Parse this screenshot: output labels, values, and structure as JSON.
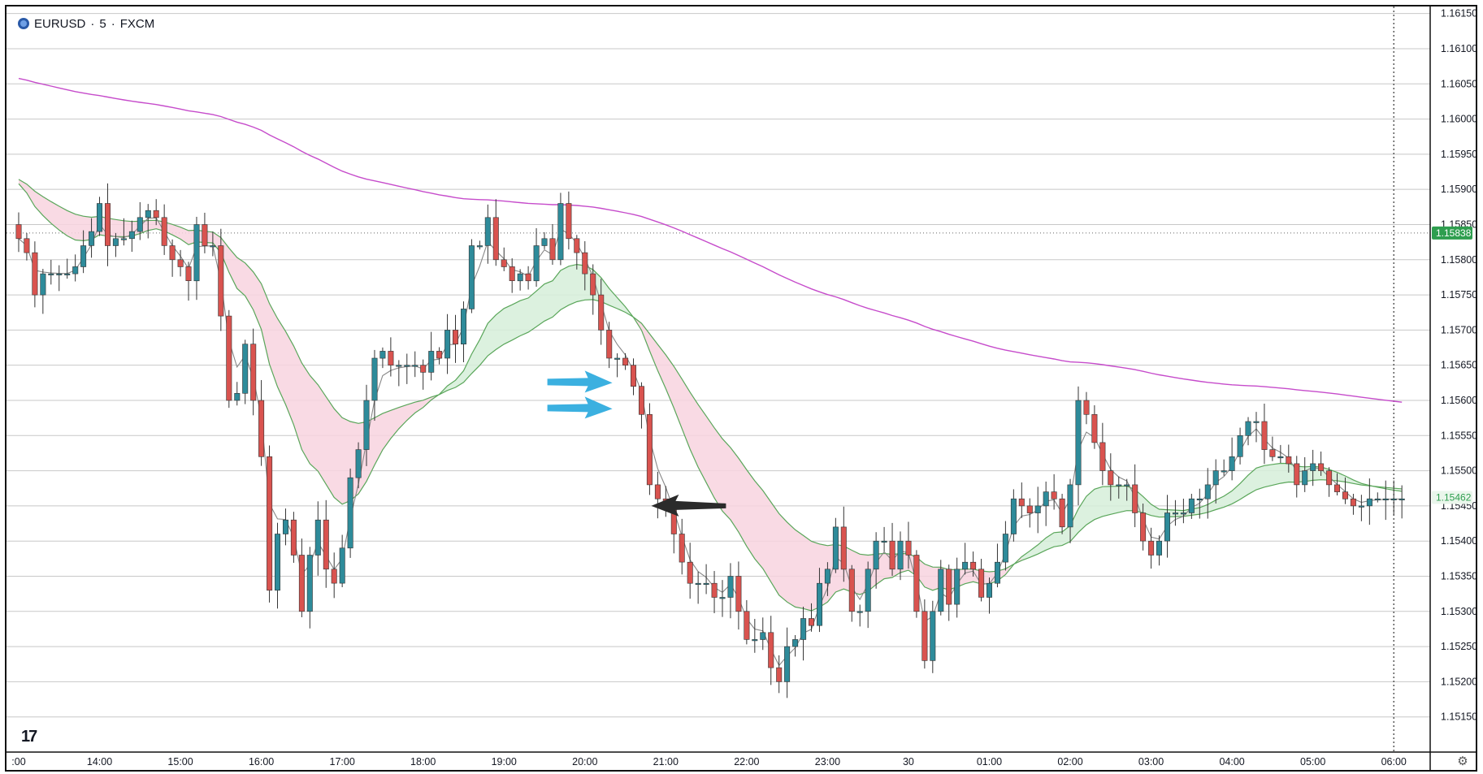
{
  "header": {
    "symbol": "EURUSD",
    "sep1": "·",
    "interval": "5",
    "sep2": "·",
    "exchange": "FXCM",
    "logo_icon": "fxcm-logo-icon"
  },
  "footer": {
    "brand_icon": "tradingview-logo-icon",
    "brand_text": "17",
    "settings_icon": "gear-icon"
  },
  "colors": {
    "bull": "#26a69a",
    "bear": "#ef5350",
    "bull_body": "#2e8b9a",
    "bear_body": "#d9534f",
    "ma_slow": "#c64ccb",
    "ribbon_line": "#5aa65a",
    "bear_fill": "#f8d3df",
    "bull_fill": "#d6efd9",
    "grid": "#c8c8c8",
    "ema_fast": "#888888",
    "arrow_blue": "#3bb0e0",
    "arrow_dark": "#2b2b2b",
    "badge_green": "#2e9e4f"
  },
  "chart_data": {
    "type": "candlestick",
    "symbol": "EURUSD",
    "interval": "5",
    "ylim": [
      1.151,
      1.1616
    ],
    "y_ticks": [
      "1.16150",
      "1.16100",
      "1.16050",
      "1.16000",
      "1.15950",
      "1.15900",
      "1.15850",
      "1.15800",
      "1.15750",
      "1.15700",
      "1.15650",
      "1.15600",
      "1.15550",
      "1.15500",
      "1.15450",
      "1.15400",
      "1.15350",
      "1.15300",
      "1.15250",
      "1.15200",
      "1.15150"
    ],
    "y_tick_values": [
      1.1615,
      1.161,
      1.1605,
      1.16,
      1.1595,
      1.159,
      1.1585,
      1.158,
      1.1575,
      1.157,
      1.1565,
      1.156,
      1.1555,
      1.155,
      1.1545,
      1.154,
      1.1535,
      1.153,
      1.1525,
      1.152,
      1.1515
    ],
    "x_ticks": [
      {
        "label": ":00",
        "bar": 0
      },
      {
        "label": "14:00",
        "bar": 10
      },
      {
        "label": "15:00",
        "bar": 20
      },
      {
        "label": "16:00",
        "bar": 30
      },
      {
        "label": "17:00",
        "bar": 40
      },
      {
        "label": "18:00",
        "bar": 50
      },
      {
        "label": "19:00",
        "bar": 60
      },
      {
        "label": "20:00",
        "bar": 70
      },
      {
        "label": "21:00",
        "bar": 80
      },
      {
        "label": "22:00",
        "bar": 90
      },
      {
        "label": "23:00",
        "bar": 100
      },
      {
        "label": "30",
        "bar": 110
      },
      {
        "label": "01:00",
        "bar": 120
      },
      {
        "label": "02:00",
        "bar": 130
      },
      {
        "label": "03:00",
        "bar": 140
      },
      {
        "label": "04:00",
        "bar": 150
      },
      {
        "label": "05:00",
        "bar": 160
      },
      {
        "label": "06:00",
        "bar": 170
      }
    ],
    "bar_count": 175,
    "crosshair_bar": 170,
    "last_price_label": "1.15462",
    "last_price": 1.15462,
    "marker_price_label": "1.15838",
    "marker_price": 1.15838,
    "closes": [
      1.1583,
      1.1581,
      1.1575,
      1.1578,
      1.1578,
      1.1578,
      1.1578,
      1.1579,
      1.1582,
      1.1584,
      1.1588,
      1.1582,
      1.1583,
      1.1583,
      1.1584,
      1.1586,
      1.1587,
      1.1586,
      1.1582,
      1.158,
      1.1579,
      1.1577,
      1.1585,
      1.1582,
      1.1582,
      1.1572,
      1.156,
      1.1561,
      1.1568,
      1.156,
      1.1552,
      1.1533,
      1.1541,
      1.1543,
      1.1538,
      1.153,
      1.1538,
      1.1543,
      1.1536,
      1.1534,
      1.1539,
      1.1549,
      1.1553,
      1.156,
      1.1566,
      1.1567,
      1.1565,
      1.1565,
      1.1565,
      1.1565,
      1.1564,
      1.1567,
      1.1566,
      1.157,
      1.1568,
      1.1573,
      1.1582,
      1.1582,
      1.1586,
      1.158,
      1.1579,
      1.1577,
      1.1578,
      1.1577,
      1.1582,
      1.1583,
      1.158,
      1.1588,
      1.1583,
      1.1581,
      1.1578,
      1.1575,
      1.157,
      1.1566,
      1.1566,
      1.1565,
      1.1562,
      1.1558,
      1.1548,
      1.1546,
      1.1545,
      1.1541,
      1.1537,
      1.1534,
      1.1534,
      1.1534,
      1.1532,
      1.1532,
      1.1535,
      1.153,
      1.1526,
      1.1526,
      1.1527,
      1.1522,
      1.152,
      1.1525,
      1.1526,
      1.1529,
      1.1528,
      1.1534,
      1.1536,
      1.1542,
      1.1536,
      1.153,
      1.153,
      1.1536,
      1.154,
      1.154,
      1.1536,
      1.154,
      1.1538,
      1.153,
      1.1523,
      1.153,
      1.1536,
      1.1531,
      1.1536,
      1.1537,
      1.1536,
      1.1532,
      1.1534,
      1.1537,
      1.1541,
      1.1546,
      1.1545,
      1.1544,
      1.1545,
      1.1547,
      1.1546,
      1.1542,
      1.1548,
      1.156,
      1.1558,
      1.1554,
      1.155,
      1.1548,
      1.1548,
      1.1548,
      1.1544,
      1.154,
      1.1538,
      1.154,
      1.1544,
      1.1544,
      1.1544,
      1.1546,
      1.1546,
      1.1548,
      1.155,
      1.155,
      1.1552,
      1.1555,
      1.1557,
      1.1557,
      1.1553,
      1.1552,
      1.1552,
      1.1551,
      1.1548,
      1.155,
      1.1551,
      1.155,
      1.1548,
      1.1547,
      1.1546,
      1.1545,
      1.1545,
      1.1546,
      1.1546,
      1.1546,
      1.1546,
      1.1546
    ]
  },
  "annotations": {
    "blue_arrows": [
      {
        "bar": 74,
        "price": 1.15625
      },
      {
        "bar": 74,
        "price": 1.15588
      }
    ],
    "dark_arrow": {
      "bar": 78,
      "price": 1.1545
    }
  }
}
